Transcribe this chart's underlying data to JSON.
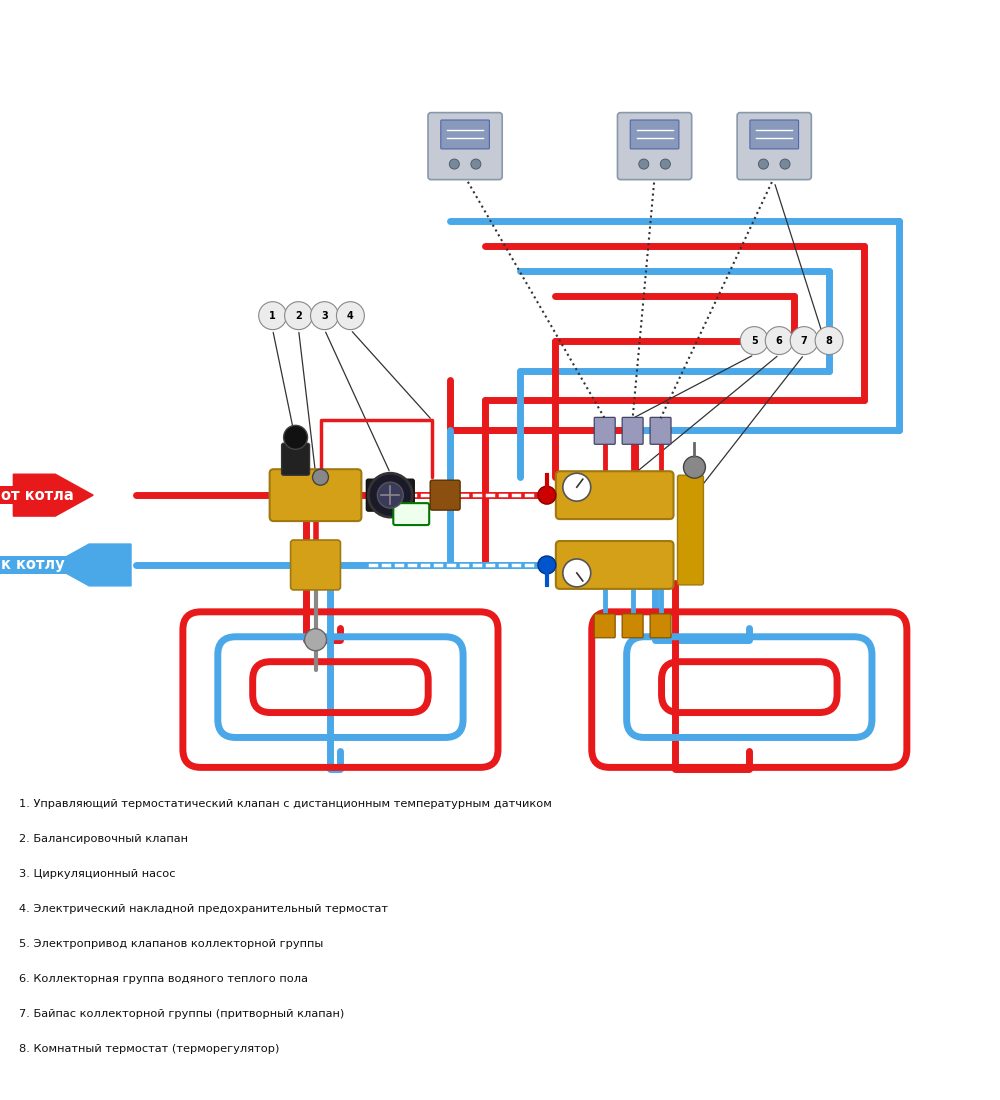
{
  "background_color": "#ffffff",
  "red_color": "#e8191a",
  "blue_color": "#4aa8e8",
  "legend_items": [
    "1. Управляющий термостатический клапан с дистанционным температурным датчиком",
    "2. Балансировочный клапан",
    "3. Циркуляционный насос",
    "4. Электрический накладной предохранительный термостат",
    "5. Электропривод клапанов коллекторной группы",
    "6. Коллекторная группа водяного теплого пола",
    "7. Байпас коллекторной группы (притворный клапан)",
    "8. Комнатный термостат (терморегулятор)"
  ],
  "label_from_boiler": "от котла",
  "label_to_boiler": "к котлу"
}
